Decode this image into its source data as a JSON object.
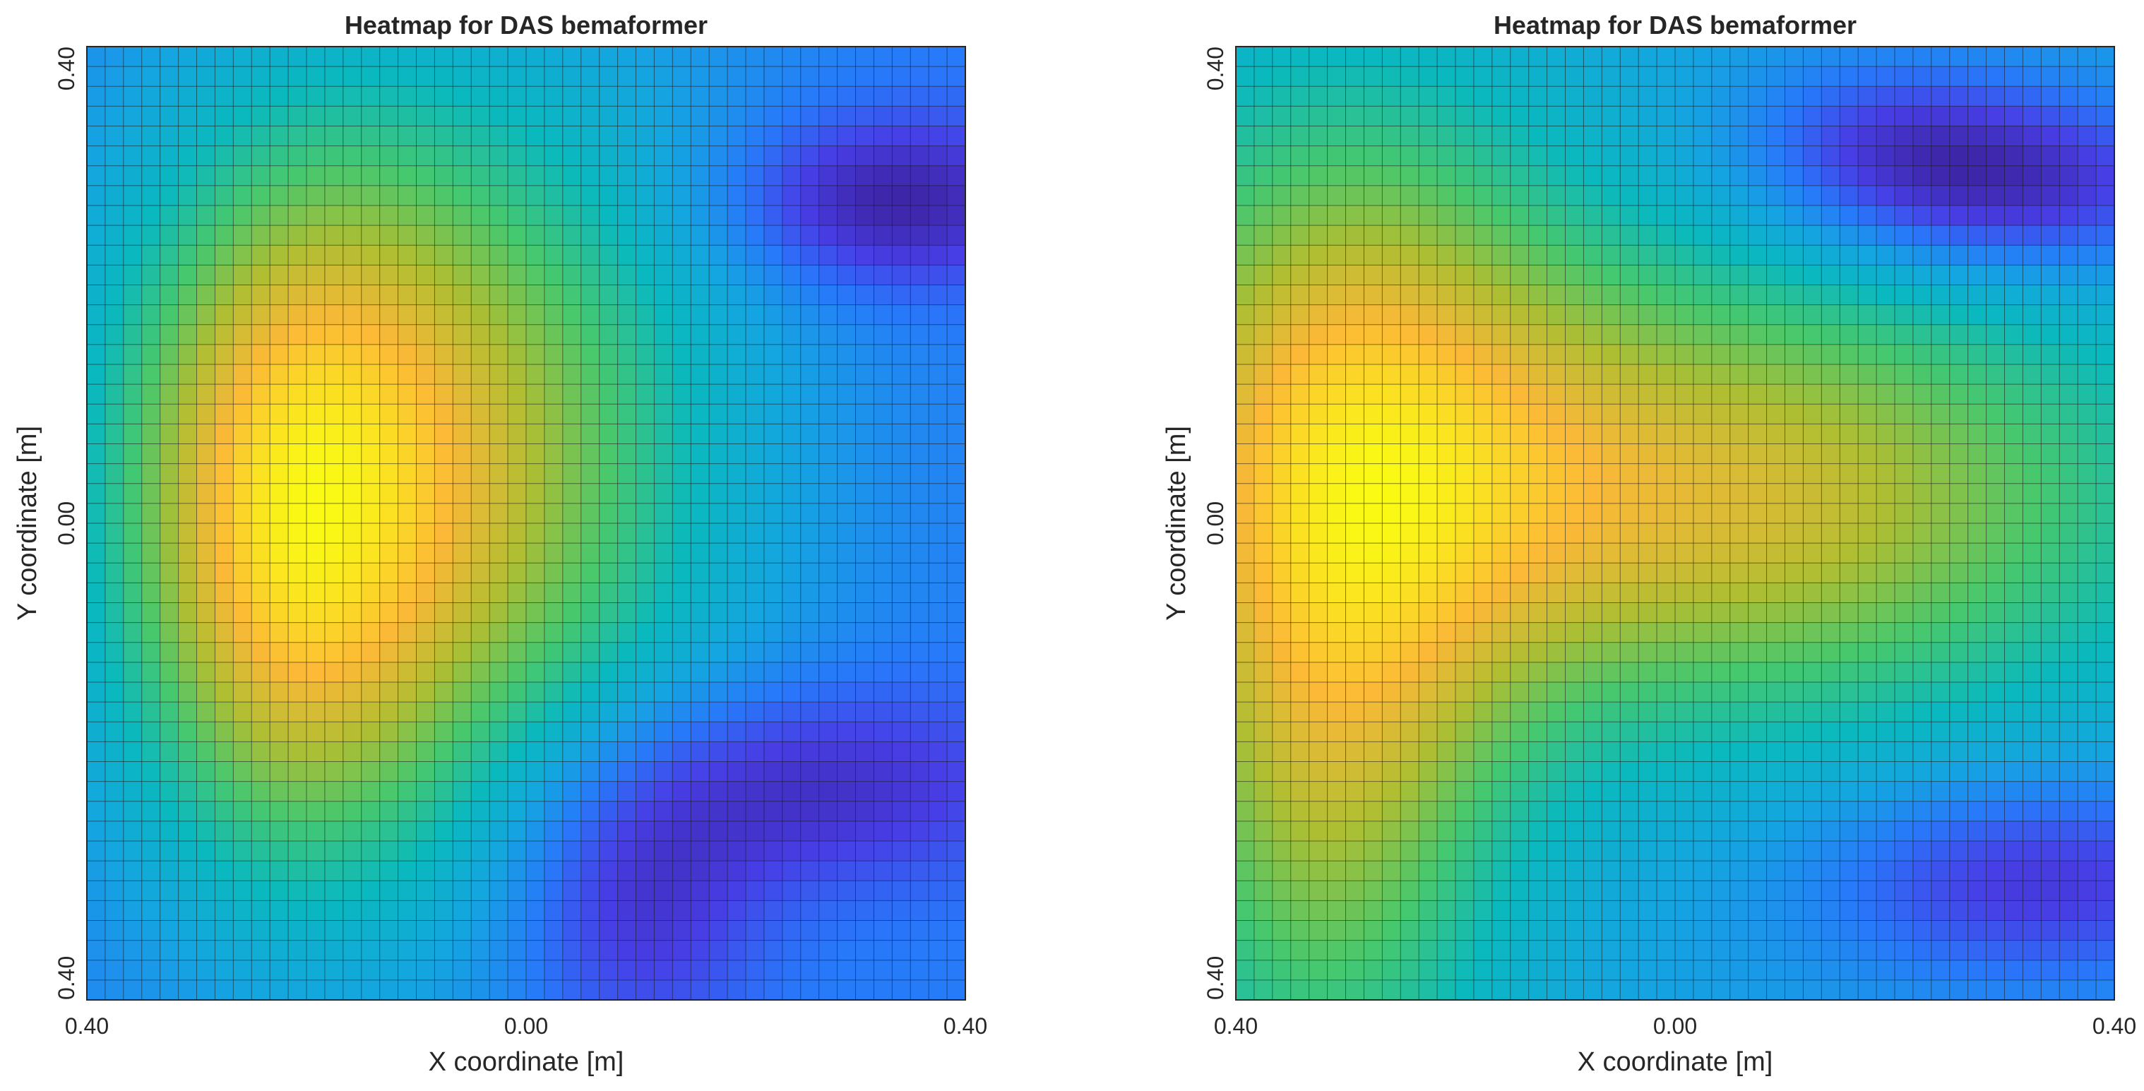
{
  "chart_data": [
    {
      "type": "heatmap",
      "title": "Heatmap for DAS bemaformer",
      "xlabel": "X coordinate [m]",
      "ylabel": "Y coordinate [m]",
      "x_ticks": [
        "0.40",
        "0.00",
        "0.40"
      ],
      "y_ticks": [
        "0.40",
        "0.00",
        "0.40"
      ],
      "grid": true,
      "colormap": "parula",
      "cells": [
        48,
        48
      ],
      "rows_order": "top-to-bottom",
      "description_values_normalized": "relative power, 0 = dark blue, 1 = yellow",
      "field_peaks": [
        {
          "x": -0.1,
          "y": 0.05,
          "weight": 1.0,
          "sx": 0.2,
          "sy": 0.24
        },
        {
          "x": -0.23,
          "y": -0.02,
          "weight": 0.55,
          "sx": 0.1,
          "sy": 0.2
        }
      ],
      "field_nulls": [
        {
          "x": 0.33,
          "y": 0.27,
          "weight": 0.55,
          "sx": 0.1,
          "sy": 0.05
        },
        {
          "x": 0.25,
          "y": -0.22,
          "weight": 0.45,
          "sx": 0.14,
          "sy": 0.06
        },
        {
          "x": 0.1,
          "y": -0.32,
          "weight": 0.45,
          "sx": 0.08,
          "sy": 0.08
        }
      ]
    },
    {
      "type": "heatmap",
      "title": "Heatmap for DAS bemaformer",
      "xlabel": "X coordinate [m]",
      "ylabel": "Y coordinate [m]",
      "x_ticks": [
        "0.40",
        "0.00",
        "0.40"
      ],
      "y_ticks": [
        "0.40",
        "0.00",
        "0.40"
      ],
      "grid": true,
      "colormap": "parula",
      "cells": [
        48,
        48
      ],
      "rows_order": "top-to-bottom",
      "description_values_normalized": "relative power, 0 = dark blue, 1 = yellow",
      "field_peaks": [
        {
          "x": 0.05,
          "y": 0.02,
          "weight": 1.0,
          "sx": 0.28,
          "sy": 0.14
        },
        {
          "x": -0.32,
          "y": -0.2,
          "weight": 0.8,
          "sx": 0.12,
          "sy": 0.22
        },
        {
          "x": -0.3,
          "y": 0.15,
          "weight": 0.7,
          "sx": 0.16,
          "sy": 0.18
        }
      ],
      "field_nulls": [
        {
          "x": 0.32,
          "y": 0.28,
          "weight": 0.7,
          "sx": 0.12,
          "sy": 0.05
        },
        {
          "x": 0.33,
          "y": -0.3,
          "weight": 0.65,
          "sx": 0.14,
          "sy": 0.06
        },
        {
          "x": 0.2,
          "y": 0.32,
          "weight": 0.5,
          "sx": 0.1,
          "sy": 0.05
        }
      ]
    }
  ]
}
